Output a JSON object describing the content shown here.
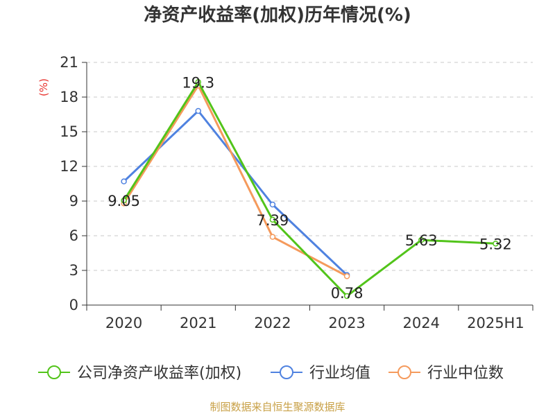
{
  "colors": {
    "series": [
      "#52c41a",
      "#4f82e0",
      "#f59a5c"
    ],
    "grid": "#c8c8c8",
    "axis": "#333333",
    "unit": "#e8322d",
    "source": "#c8a046"
  },
  "chart_data": {
    "type": "line",
    "title": "净资产收益率(加权)历年情况(%)",
    "ylabel": "(%)",
    "categories": [
      "2020",
      "2021",
      "2022",
      "2023",
      "2024",
      "2025H1"
    ],
    "yticks": [
      "0",
      "3",
      "6",
      "9",
      "12",
      "15",
      "18",
      "21"
    ],
    "ylim": [
      0,
      21
    ],
    "grid": true,
    "legend_position": "bottom",
    "series": [
      {
        "name": "公司净资产收益率(加权)",
        "values": [
          9.05,
          19.3,
          7.39,
          0.78,
          5.63,
          5.32
        ],
        "labels": [
          "9.05",
          "19.3",
          "7.39",
          "0.78",
          "5.63",
          "5.32"
        ]
      },
      {
        "name": "行业均值",
        "values": [
          10.7,
          16.8,
          8.7,
          2.6,
          null,
          null
        ]
      },
      {
        "name": "行业中位数",
        "values": [
          8.8,
          19.0,
          5.9,
          2.5,
          null,
          null
        ]
      }
    ]
  },
  "source": "制图数据来自恒生聚源数据库"
}
